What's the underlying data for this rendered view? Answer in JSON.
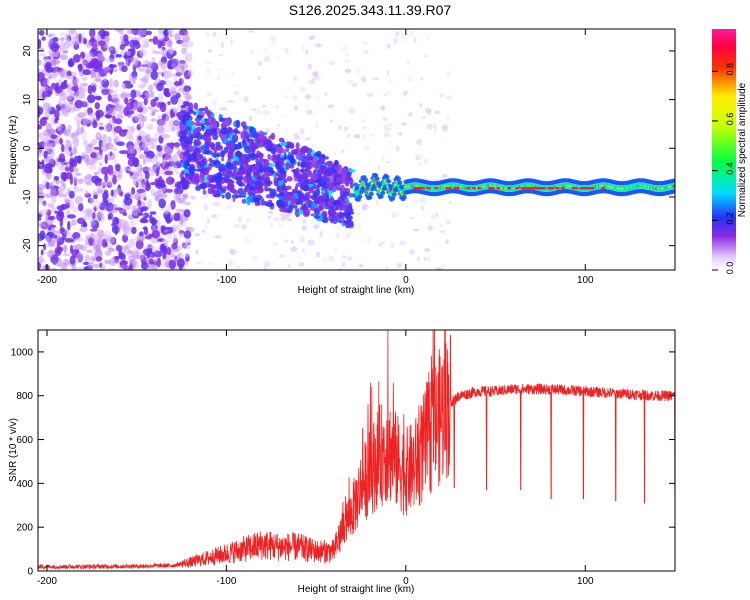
{
  "figure": {
    "title": "S126.2025.343.11.39.R07"
  },
  "chart_data": [
    {
      "type": "heatmap",
      "title": "S126.2025.343.11.39.R07",
      "xlabel": "Height of straight line (km)",
      "ylabel": "Frequency (Hz)",
      "xlim": [
        -205,
        150
      ],
      "ylim": [
        -25,
        24.5
      ],
      "x_ticks": [
        -200,
        -100,
        0,
        100
      ],
      "y_ticks": [
        -20,
        -10,
        0,
        10,
        20
      ],
      "grid": false,
      "description_of_signal": [
        {
          "x_range": [
            -205,
            -125
          ],
          "freq_range": [
            -25,
            24
          ],
          "amplitude": [
            0.05,
            0.2
          ]
        },
        {
          "x_range": [
            -125,
            -35
          ],
          "freq_center_start": 0,
          "freq_center_end": -10,
          "amplitude": [
            0.15,
            0.35
          ]
        },
        {
          "x_range": [
            -25,
            150
          ],
          "freq_center": -8,
          "amplitude": [
            0.3,
            0.95
          ]
        }
      ],
      "colorbar": {
        "label": "Normalized spectral amplitude",
        "range": [
          0,
          0.97
        ],
        "ticks": [
          0.0,
          0.2,
          0.4,
          0.6,
          0.8
        ]
      }
    },
    {
      "type": "line",
      "xlabel": "Height of straight line (km)",
      "ylabel": "SNR (10 * v/v)",
      "xlim": [
        -205,
        150
      ],
      "ylim": [
        0,
        1100
      ],
      "x_ticks": [
        -200,
        -100,
        0,
        100
      ],
      "y_ticks": [
        0,
        200,
        400,
        600,
        800,
        1000
      ],
      "grid": false,
      "series": [
        {
          "name": "SNR",
          "color": "#ee2222",
          "x": [
            -205,
            -180,
            -150,
            -130,
            -120,
            -110,
            -100,
            -90,
            -80,
            -70,
            -60,
            -50,
            -40,
            -35,
            -30,
            -25,
            -20,
            -15,
            -10,
            -5,
            0,
            5,
            10,
            15,
            20,
            25,
            30,
            40,
            50,
            60,
            80,
            100,
            120,
            140,
            150
          ],
          "y": [
            20,
            20,
            22,
            25,
            40,
            60,
            80,
            100,
            120,
            110,
            110,
            90,
            90,
            200,
            270,
            380,
            450,
            520,
            560,
            500,
            450,
            480,
            560,
            650,
            720,
            770,
            800,
            820,
            820,
            830,
            830,
            820,
            810,
            800,
            800
          ]
        }
      ],
      "dropouts": [
        {
          "x": 27,
          "y": 380
        },
        {
          "x": 45,
          "y": 370
        },
        {
          "x": 64,
          "y": 370
        },
        {
          "x": 81,
          "y": 330
        },
        {
          "x": 99,
          "y": 330
        },
        {
          "x": 117,
          "y": 320
        },
        {
          "x": 133,
          "y": 310
        },
        {
          "x": 150,
          "y": 350
        }
      ],
      "spikes": [
        {
          "x": -10,
          "y": 1100
        },
        {
          "x": -24,
          "y": 650
        },
        {
          "x": -19,
          "y": 840
        },
        {
          "x": -7,
          "y": 860
        },
        {
          "x": 15,
          "y": 750
        }
      ]
    }
  ]
}
